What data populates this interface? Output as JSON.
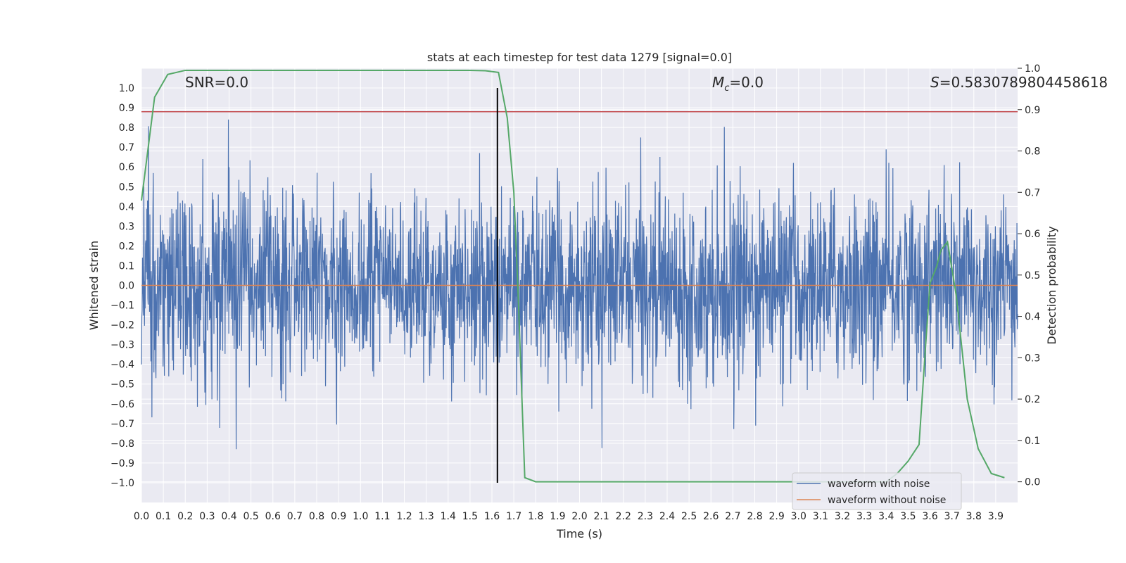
{
  "chart_data": {
    "type": "line",
    "title": "stats at each timestep for test data 1279 [signal=0.0]",
    "xlabel": "Time (s)",
    "ylabel": "Whitened strain",
    "y2label": "Detection probability",
    "xlim": [
      0.0,
      4.0
    ],
    "ylim": [
      -1.1,
      1.1
    ],
    "y2lim": [
      -0.05,
      1.0
    ],
    "x_ticks": [
      "0.0",
      "0.1",
      "0.2",
      "0.3",
      "0.4",
      "0.5",
      "0.6",
      "0.7",
      "0.8",
      "0.9",
      "1.0",
      "1.1",
      "1.2",
      "1.3",
      "1.4",
      "1.5",
      "1.6",
      "1.7",
      "1.8",
      "1.9",
      "2.0",
      "2.1",
      "2.2",
      "2.3",
      "2.4",
      "2.5",
      "2.6",
      "2.7",
      "2.8",
      "2.9",
      "3.0",
      "3.1",
      "3.2",
      "3.3",
      "3.4",
      "3.5",
      "3.6",
      "3.7",
      "3.8",
      "3.9"
    ],
    "y_ticks": [
      "1.0",
      "0.9",
      "0.8",
      "0.7",
      "0.6",
      "0.5",
      "0.4",
      "0.3",
      "0.2",
      "0.1",
      "0.0",
      "−0.1",
      "−0.2",
      "−0.3",
      "−0.4",
      "−0.5",
      "−0.6",
      "−0.7",
      "−0.8",
      "−0.9",
      "−1.0"
    ],
    "y2_ticks": [
      "1.0",
      "0.9",
      "0.8",
      "0.7",
      "0.6",
      "0.5",
      "0.4",
      "0.3",
      "0.2",
      "0.1",
      "0.0"
    ],
    "annotations": {
      "snr": "SNR=0.0",
      "mc_symbol": "M",
      "mc_sub": "c",
      "mc_value": "=0.0",
      "s_symbol": "S",
      "s_value": "=0.5830789804458618"
    },
    "series": [
      {
        "name": "waveform with noise",
        "color": "#4c72b0",
        "note": "dense noise trace between about -1.0 and 1.0"
      },
      {
        "name": "waveform without noise",
        "color": "#dd8452",
        "value": 0.0
      },
      {
        "name": "detection probability",
        "color": "#55a868",
        "axis": "right",
        "x": [
          0.0,
          0.06,
          0.12,
          0.2,
          0.3,
          0.5,
          1.0,
          1.5,
          1.57,
          1.63,
          1.67,
          1.7,
          1.72,
          1.75,
          1.8,
          1.9,
          2.5,
          3.0,
          3.4,
          3.45,
          3.5,
          3.55,
          3.58,
          3.6,
          3.63,
          3.65,
          3.68,
          3.72,
          3.77,
          3.82,
          3.88,
          3.94
        ],
        "values": [
          0.68,
          0.93,
          0.985,
          0.995,
          0.995,
          0.995,
          0.995,
          0.995,
          0.994,
          0.99,
          0.88,
          0.7,
          0.45,
          0.01,
          0.0,
          0.0,
          0.0,
          0.0,
          0.0,
          0.02,
          0.05,
          0.09,
          0.33,
          0.48,
          0.52,
          0.56,
          0.58,
          0.45,
          0.2,
          0.08,
          0.02,
          0.01
        ]
      }
    ],
    "threshold": {
      "axis": "right",
      "value": 0.895,
      "color": "#c44e52"
    },
    "marker_time": {
      "x": 1.625,
      "color": "#000000"
    },
    "legend": {
      "placement": "lower-right",
      "entries": [
        "waveform with noise",
        "waveform without noise"
      ]
    }
  }
}
